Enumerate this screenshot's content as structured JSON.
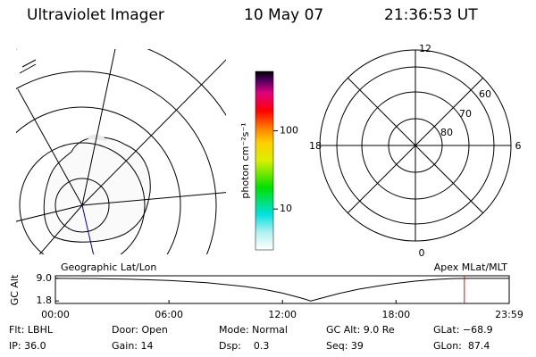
{
  "header": {
    "title": "Ultraviolet Imager",
    "date": "10 May 07",
    "time": "21:36:53 UT"
  },
  "map": {
    "label": "Geographic Lat/Lon"
  },
  "colorbar": {
    "label": "photon cm⁻²s⁻¹",
    "scale": "log",
    "lim": [
      3,
      575
    ],
    "ticks": [
      10,
      100
    ]
  },
  "polar": {
    "label": "Apex MLat/MLT",
    "mlt_labels": [
      "12",
      "6",
      "0",
      "18"
    ],
    "lat_labels": [
      "60",
      "70",
      "80"
    ]
  },
  "chart_data": {
    "type": "line",
    "y_label": "GC Alt",
    "color": "#000000",
    "marker_color": "#ff0000",
    "x": [
      0,
      2,
      4,
      6,
      8,
      10,
      11,
      12,
      13,
      13.5,
      14,
      15,
      16,
      17,
      18,
      19,
      20,
      21,
      22,
      23.98
    ],
    "values": [
      9.0,
      8.9,
      8.7,
      8.3,
      7.6,
      6.4,
      5.5,
      4.3,
      2.7,
      1.8,
      2.6,
      4.2,
      5.5,
      6.5,
      7.4,
      8.1,
      8.6,
      8.9,
      9.0,
      9.0
    ],
    "marker_x": 21.61,
    "xlim": [
      0,
      23.98
    ],
    "ylim": [
      1.0,
      9.8
    ],
    "xticks": [
      {
        "value": 0,
        "label": "00:00"
      },
      {
        "value": 6,
        "label": "06:00"
      },
      {
        "value": 12,
        "label": "12:00"
      },
      {
        "value": 18,
        "label": "18:00"
      },
      {
        "value": 23.98,
        "label": "23:59"
      }
    ],
    "yticks": [
      {
        "value": 9,
        "label": "9.0"
      },
      1.8
    ]
  },
  "footer": {
    "rows": [
      [
        "Flt: LBHL",
        "Door: Open",
        "Mode: Normal",
        "GC Alt: 9.0 Re",
        "GLat: −68.9"
      ],
      [
        "IP: 36.0",
        "Gain: 14",
        "Dsp:    0.3",
        "Seq: 39",
        "GLon:  87.4"
      ]
    ]
  }
}
